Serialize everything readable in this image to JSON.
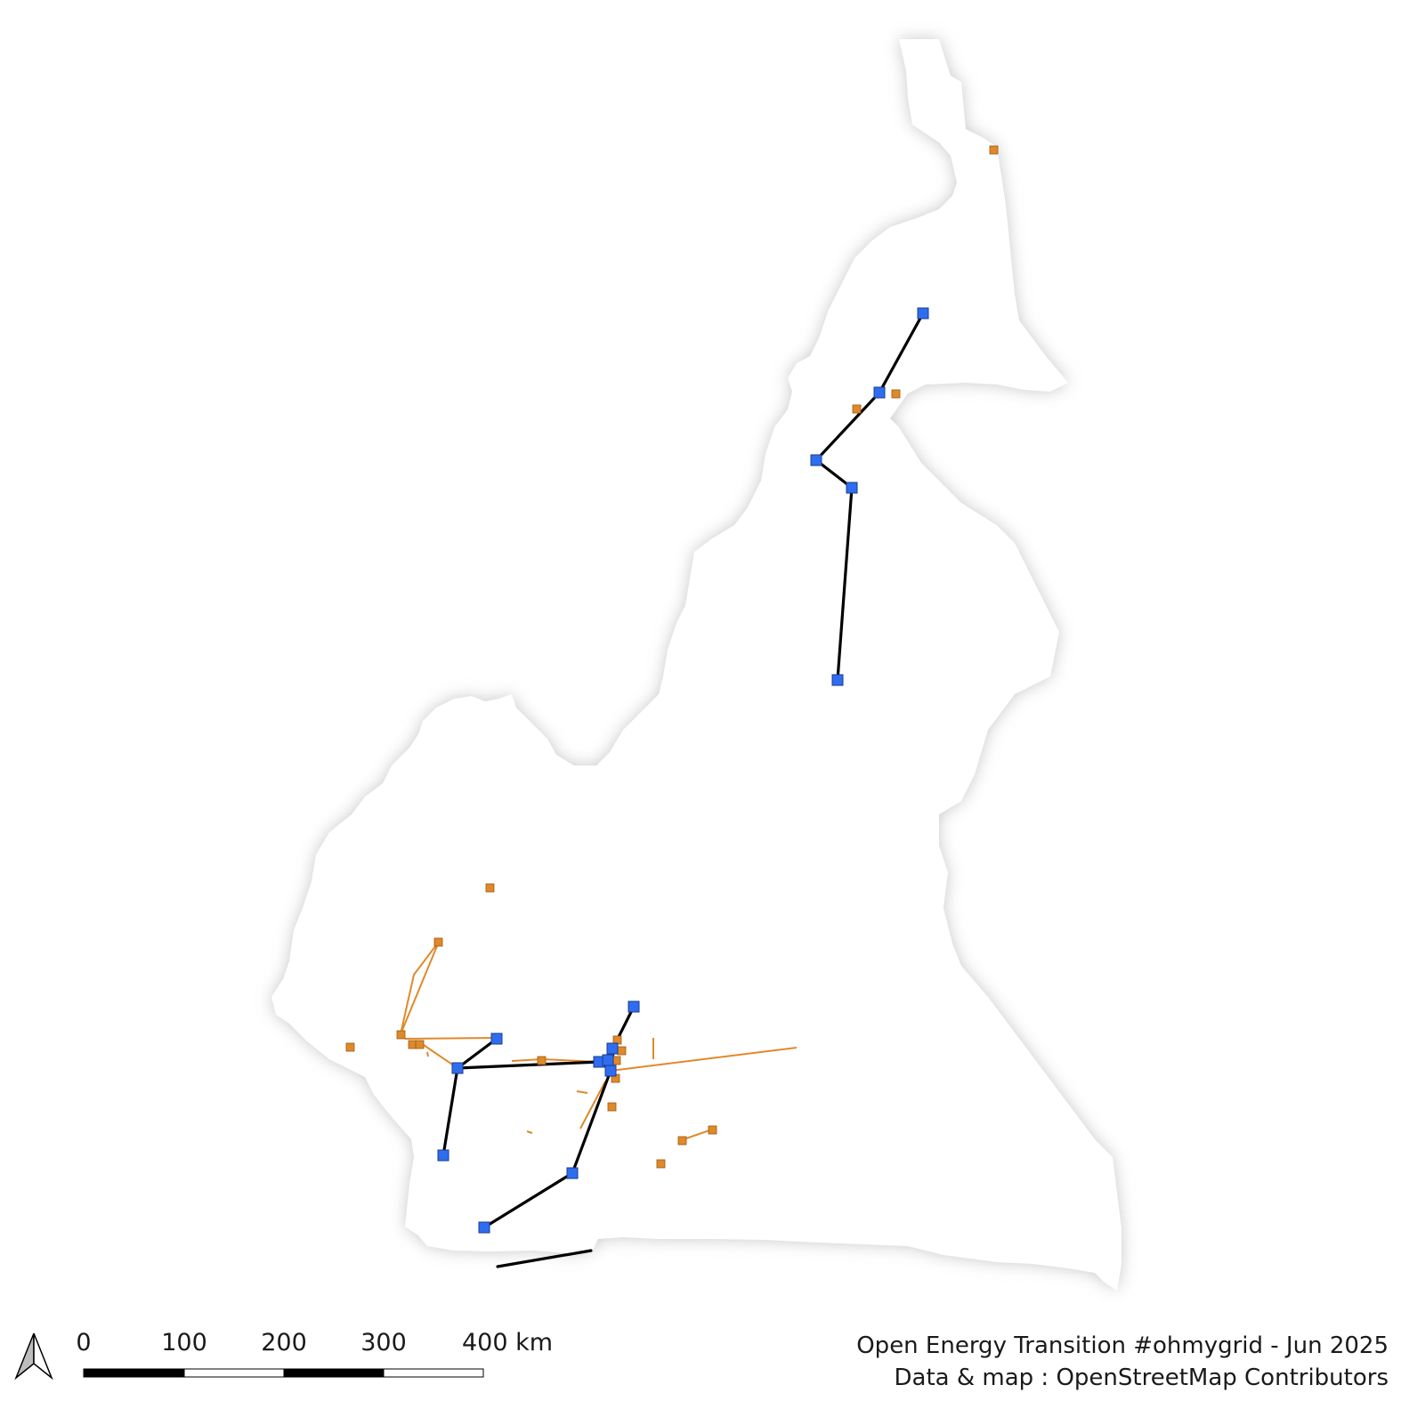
{
  "map": {
    "land_fill": "#ffffff",
    "halo_color": "#cfcfcf",
    "legend_colors": {
      "hv_line": "#000000",
      "hv_substation": "#2f6df0",
      "other_line": "#e0892a",
      "other_substation": "#e0892a"
    }
  },
  "north_arrow": {
    "icon": "north-arrow-icon"
  },
  "scale_bar": {
    "labels": [
      "0",
      "100",
      "200",
      "300",
      "400 km"
    ]
  },
  "credits": {
    "line1": "Open Energy Transition #ohmygrid - Jun 2025",
    "line2": "Data & map : OpenStreetMap Contributors"
  }
}
